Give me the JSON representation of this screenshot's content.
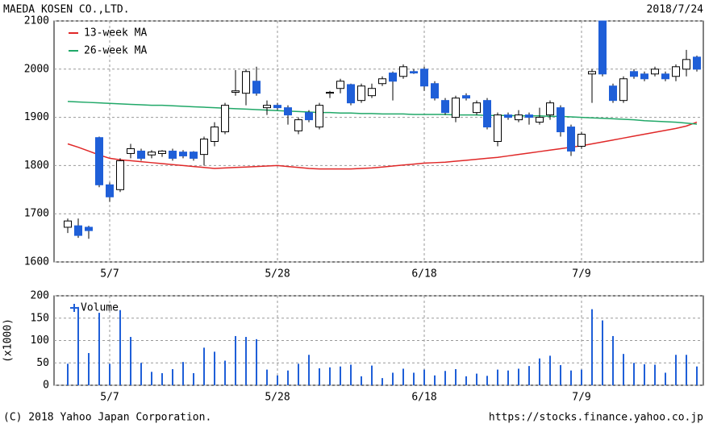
{
  "header": {
    "company": "MAEDA KOSEN CO.,LTD.",
    "date": "2018/7/24"
  },
  "footer": {
    "copyright": "(C) 2018 Yahoo Japan Corporation.",
    "url": "https://stocks.finance.yahoo.co.jp"
  },
  "chart_data": [
    {
      "type": "candlestick",
      "categories": [
        null,
        null,
        null,
        null,
        "5/7",
        null,
        null,
        null,
        null,
        null,
        null,
        null,
        null,
        null,
        null,
        null,
        null,
        null,
        null,
        null,
        "5/28",
        null,
        null,
        null,
        null,
        null,
        null,
        null,
        null,
        null,
        null,
        null,
        null,
        null,
        "6/18",
        null,
        null,
        null,
        null,
        null,
        null,
        null,
        null,
        null,
        null,
        null,
        null,
        null,
        null,
        "7/9",
        null,
        null,
        null,
        null,
        null,
        null,
        null,
        null,
        null,
        null,
        null
      ],
      "open": [
        1672,
        1675,
        1672,
        1858,
        1760,
        1750,
        1825,
        1830,
        1822,
        1825,
        1830,
        1828,
        1828,
        1823,
        1850,
        1870,
        1952,
        1950,
        1975,
        1920,
        1925,
        1920,
        1872,
        1910,
        1880,
        1950,
        1960,
        1968,
        1935,
        1945,
        1970,
        1992,
        1985,
        1995,
        2000,
        1970,
        1935,
        1900,
        1945,
        1910,
        1935,
        1850,
        1905,
        1895,
        1905,
        1890,
        1905,
        1920,
        1880,
        1840,
        1990,
        2100,
        1965,
        1935,
        1995,
        1990,
        1990,
        1990,
        1985,
        2000,
        2025
      ],
      "high": [
        1690,
        1690,
        1675,
        1860,
        1765,
        1815,
        1845,
        1835,
        1832,
        1832,
        1835,
        1832,
        1830,
        1860,
        1890,
        1930,
        1998,
        2000,
        2005,
        1935,
        1930,
        1925,
        1900,
        1915,
        1930,
        1955,
        1980,
        1970,
        1970,
        1970,
        1985,
        1995,
        2010,
        2000,
        2005,
        1975,
        1940,
        1945,
        1950,
        1935,
        1940,
        1910,
        1910,
        1915,
        1910,
        1920,
        1935,
        1925,
        1885,
        1870,
        2000,
        2100,
        1970,
        1985,
        2000,
        1995,
        2005,
        1995,
        2010,
        2040,
        2028
      ],
      "low": [
        1660,
        1650,
        1648,
        1755,
        1725,
        1745,
        1815,
        1810,
        1815,
        1818,
        1810,
        1815,
        1810,
        1800,
        1840,
        1865,
        1945,
        1925,
        1945,
        1905,
        1915,
        1885,
        1865,
        1890,
        1875,
        1940,
        1950,
        1925,
        1930,
        1940,
        1965,
        1935,
        1980,
        1990,
        1955,
        1935,
        1905,
        1890,
        1935,
        1905,
        1875,
        1840,
        1895,
        1890,
        1885,
        1885,
        1895,
        1860,
        1820,
        1835,
        1930,
        1985,
        1930,
        1930,
        1980,
        1975,
        1985,
        1975,
        1975,
        1985,
        1995
      ],
      "close": [
        1685,
        1655,
        1665,
        1760,
        1735,
        1810,
        1835,
        1815,
        1828,
        1830,
        1815,
        1820,
        1815,
        1855,
        1880,
        1925,
        1955,
        1995,
        1950,
        1925,
        1920,
        1905,
        1895,
        1895,
        1925,
        1952,
        1975,
        1930,
        1965,
        1960,
        1980,
        1975,
        2005,
        1992,
        1965,
        1940,
        1910,
        1940,
        1940,
        1930,
        1880,
        1905,
        1900,
        1905,
        1900,
        1900,
        1930,
        1870,
        1830,
        1865,
        1995,
        1990,
        1935,
        1980,
        1985,
        1980,
        2000,
        1980,
        2005,
        2020,
        2000
      ],
      "up_color": "#ffffff",
      "down_color": "#1f5fd8",
      "lines": [
        {
          "name": "13-week MA",
          "color": "#e02828",
          "values": [
            1845,
            1838,
            1830,
            1822,
            1815,
            1812,
            1810,
            1808,
            1806,
            1804,
            1802,
            1800,
            1798,
            1796,
            1794,
            1795,
            1796,
            1797,
            1798,
            1799,
            1800,
            1798,
            1796,
            1794,
            1793,
            1793,
            1793,
            1793,
            1794,
            1795,
            1797,
            1799,
            1801,
            1803,
            1805,
            1806,
            1807,
            1809,
            1811,
            1813,
            1815,
            1817,
            1820,
            1823,
            1826,
            1829,
            1832,
            1835,
            1838,
            1841,
            1845,
            1849,
            1853,
            1857,
            1861,
            1865,
            1869,
            1873,
            1877,
            1882,
            1890
          ]
        },
        {
          "name": "26-week MA",
          "color": "#20a868",
          "values": [
            1933,
            1932,
            1931,
            1930,
            1929,
            1928,
            1927,
            1926,
            1925,
            1925,
            1924,
            1923,
            1922,
            1921,
            1920,
            1919,
            1918,
            1917,
            1916,
            1915,
            1914,
            1913,
            1912,
            1911,
            1910,
            1910,
            1909,
            1909,
            1908,
            1908,
            1907,
            1907,
            1907,
            1906,
            1906,
            1906,
            1906,
            1905,
            1905,
            1905,
            1904,
            1904,
            1904,
            1903,
            1903,
            1903,
            1902,
            1902,
            1901,
            1900,
            1899,
            1898,
            1897,
            1896,
            1895,
            1893,
            1892,
            1891,
            1890,
            1888,
            1886
          ]
        }
      ],
      "ylim": [
        1600,
        2100
      ],
      "yticks": [
        1600,
        1700,
        1800,
        1900,
        2000,
        2100
      ],
      "grid": true,
      "legend": "upper left"
    },
    {
      "type": "bar",
      "categories": [
        null,
        null,
        null,
        null,
        "5/7",
        null,
        null,
        null,
        null,
        null,
        null,
        null,
        null,
        null,
        null,
        null,
        null,
        null,
        null,
        null,
        "5/28",
        null,
        null,
        null,
        null,
        null,
        null,
        null,
        null,
        null,
        null,
        null,
        null,
        null,
        "6/18",
        null,
        null,
        null,
        null,
        null,
        null,
        null,
        null,
        null,
        null,
        null,
        null,
        null,
        null,
        "7/9",
        null,
        null,
        null,
        null,
        null,
        null,
        null,
        null,
        null,
        null,
        null
      ],
      "series": [
        {
          "name": "Volume",
          "color": "#1f5fd8",
          "values": [
            48,
            175,
            72,
            162,
            48,
            168,
            108,
            50,
            30,
            27,
            36,
            52,
            27,
            84,
            75,
            55,
            110,
            108,
            103,
            35,
            22,
            33,
            48,
            68,
            38,
            40,
            42,
            46,
            20,
            44,
            16,
            28,
            37,
            28,
            35,
            22,
            32,
            36,
            20,
            26,
            21,
            35,
            33,
            37,
            43,
            60,
            66,
            45,
            33,
            35,
            170,
            145,
            110,
            70,
            50,
            47,
            46,
            28,
            68,
            68,
            42
          ]
        }
      ],
      "ylabel": "(x1000)",
      "ylim": [
        0,
        200
      ],
      "yticks": [
        0,
        50,
        100,
        150,
        200
      ],
      "grid": true,
      "legend": "upper left"
    }
  ]
}
